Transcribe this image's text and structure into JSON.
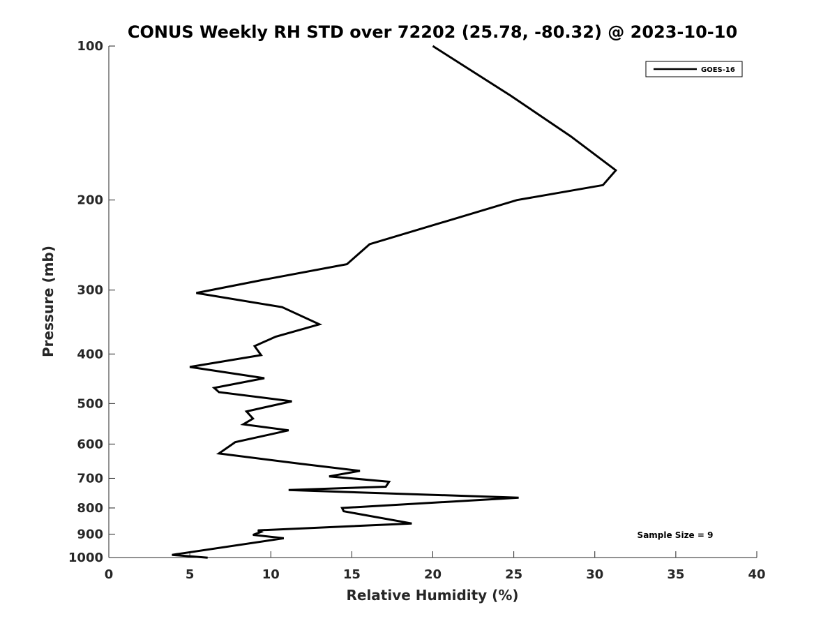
{
  "chart_data": {
    "type": "line",
    "title": "CONUS Weekly RH STD over 72202 (25.78, -80.32) @ 2023-10-10",
    "xlabel": "Relative Humidity (%)",
    "ylabel": "Pressure (mb)",
    "xlim": [
      0,
      40
    ],
    "ylim": [
      100,
      1000
    ],
    "yscale": "log",
    "y_reversed": true,
    "grid": false,
    "xticks": [
      0,
      5,
      10,
      15,
      20,
      25,
      30,
      35,
      40
    ],
    "xtick_labels": [
      "0",
      "5",
      "10",
      "15",
      "20",
      "25",
      "30",
      "35",
      "40"
    ],
    "yticks": [
      100,
      200,
      300,
      400,
      500,
      600,
      700,
      800,
      900,
      1000
    ],
    "ytick_labels": [
      "100",
      "200",
      "300",
      "400",
      "500",
      "600",
      "700",
      "800",
      "900",
      "1000"
    ],
    "legend_position": "top-right",
    "series": [
      {
        "name": "GOES-16",
        "color": "#000000",
        "rh": [
          20.0,
          24.8,
          28.5,
          31.3,
          30.5,
          25.2,
          16.1,
          14.7,
          9.4,
          5.4,
          10.7,
          13.0,
          10.3,
          9.0,
          9.4,
          5.0,
          9.6,
          6.5,
          6.8,
          11.3,
          8.5,
          8.9,
          8.3,
          11.1,
          7.8,
          6.8,
          11.7,
          15.5,
          13.6,
          17.3,
          17.1,
          11.1,
          25.3,
          14.4,
          14.5,
          18.7,
          9.2,
          9.4,
          8.9,
          10.8,
          3.9,
          6.1
        ],
        "pressure": [
          100,
          125,
          150,
          175,
          187,
          200,
          244,
          267,
          287,
          304,
          324,
          350,
          370,
          386,
          402,
          424,
          446,
          466,
          475,
          495,
          518,
          535,
          549,
          564,
          595,
          626,
          655,
          677,
          694,
          711,
          727,
          738,
          764,
          800,
          812,
          858,
          885,
          891,
          903,
          917,
          988,
          1001
        ]
      }
    ],
    "annotation": "Sample Size = 9"
  }
}
